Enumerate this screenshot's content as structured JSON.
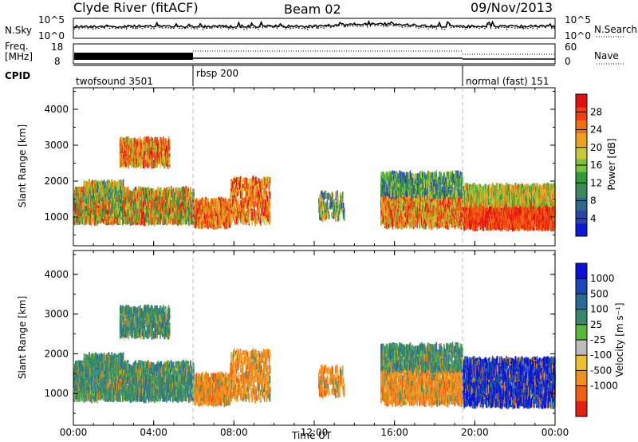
{
  "header": {
    "station": "Clyde River (fitACF)",
    "beam": "Beam 02",
    "date": "09/Nov/2013"
  },
  "top_panels": {
    "nsky_label": "N.Sky",
    "nsky_ticks": [
      "10^5",
      "10^0"
    ],
    "nsearch_label": "N.Search",
    "nsearch_ticks": [
      "10^5",
      "10^0"
    ],
    "freq_label": "Freq.",
    "freq_unit": "[MHz]",
    "freq_ticks": [
      "18",
      "8"
    ],
    "nave_label": "Nave",
    "nave_ticks": [
      "60",
      "0"
    ],
    "cpid_label": "CPID",
    "cpid_segments": [
      {
        "name": "twofsound 3501",
        "start_h": 0,
        "end_h": 6.0
      },
      {
        "name": "rbsp 200",
        "start_h": 6.0,
        "end_h": 19.4
      },
      {
        "name": "normal (fast) 151",
        "start_h": 19.4,
        "end_h": 24
      }
    ]
  },
  "chart_data": [
    {
      "type": "heatmap",
      "title": "",
      "xlabel": "Time UT",
      "ylabel": "Slant Range [km]",
      "x_ticks": [
        "00:00",
        "04:00",
        "08:00",
        "12:00",
        "16:00",
        "20:00",
        "00:00"
      ],
      "xlim_hours": [
        0,
        24
      ],
      "y_ticks": [
        1000,
        2000,
        3000,
        4000
      ],
      "ylim_km": [
        200,
        4600
      ],
      "colorbar": {
        "label": "Power [dB]",
        "ticks": [
          4,
          8,
          12,
          16,
          20,
          24,
          28
        ],
        "range": [
          0,
          32
        ],
        "colors": [
          "#0b18d8",
          "#2b44a6",
          "#2a6a8a",
          "#3b8a5a",
          "#2e9a3a",
          "#7cc23a",
          "#c8c83a",
          "#f0a020",
          "#f07010",
          "#f04010",
          "#e01010"
        ]
      }
    },
    {
      "type": "heatmap",
      "title": "",
      "xlabel": "Time UT",
      "ylabel": "Slant Range [km]",
      "x_ticks": [
        "00:00",
        "04:00",
        "08:00",
        "12:00",
        "16:00",
        "20:00",
        "00:00"
      ],
      "xlim_hours": [
        0,
        24
      ],
      "y_ticks": [
        1000,
        2000,
        3000,
        4000
      ],
      "ylim_km": [
        200,
        4600
      ],
      "colorbar": {
        "label": "Velocity [m s⁻¹]",
        "ticks": [
          1000,
          500,
          100,
          25,
          -25,
          -100,
          -500,
          -1000
        ],
        "colors": [
          "#0a10d8",
          "#1a4ab8",
          "#2a6a9a",
          "#3a8a6a",
          "#5ab83a",
          "#bcbcbc",
          "#f0c030",
          "#f09020",
          "#f06010",
          "#e02010"
        ]
      }
    }
  ]
}
